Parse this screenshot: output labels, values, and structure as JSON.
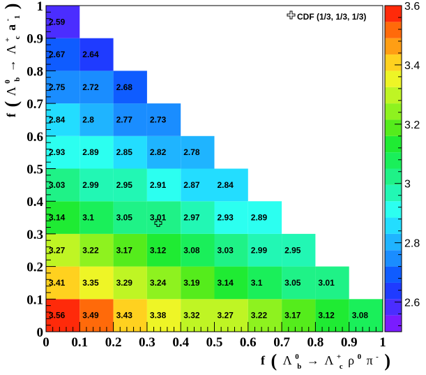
{
  "chart_data": {
    "type": "heatmap",
    "title": "",
    "xlabel": {
      "prefix": "f",
      "lambda": "Λ",
      "lambda_sub": "b",
      "lambda_sup": "0",
      "arrow": "→",
      "lambdac_sub": "c",
      "lambdac_sup": "+",
      "rho": "ρ",
      "rho_sup": "0",
      "pi": "π",
      "pi_sup": "-"
    },
    "ylabel": {
      "prefix": "f",
      "lambda": "Λ",
      "lambda_sub": "b",
      "lambda_sup": "0",
      "arrow": "→",
      "lambdac_sub": "c",
      "lambdac_sup": "+",
      "a": "a",
      "a_sub": "1",
      "a_sup": "-"
    },
    "xlim": [
      0,
      1
    ],
    "ylim": [
      0,
      1
    ],
    "zlim": [
      2.5,
      3.6
    ],
    "x_ticks": [
      "0",
      "0.1",
      "0.2",
      "0.3",
      "0.4",
      "0.5",
      "0.6",
      "0.7",
      "0.8",
      "0.9",
      "1"
    ],
    "y_ticks": [
      "0",
      "0.1",
      "0.2",
      "0.3",
      "0.4",
      "0.5",
      "0.6",
      "0.7",
      "0.8",
      "0.9",
      "1"
    ],
    "palette_ticks": [
      "2.6",
      "2.8",
      "3",
      "3.2",
      "3.4",
      "3.6"
    ],
    "bin_width": 0.1,
    "rows": [
      {
        "y": 0.0,
        "values": [
          "3.56",
          "3.49",
          "3.43",
          "3.38",
          "3.32",
          "3.27",
          "3.22",
          "3.17",
          "3.12",
          "3.08"
        ]
      },
      {
        "y": 0.1,
        "values": [
          "3.41",
          "3.35",
          "3.29",
          "3.24",
          "3.19",
          "3.14",
          "3.1",
          "3.05",
          "3.01"
        ]
      },
      {
        "y": 0.2,
        "values": [
          "3.27",
          "3.22",
          "3.17",
          "3.12",
          "3.08",
          "3.03",
          "2.99",
          "2.95"
        ]
      },
      {
        "y": 0.3,
        "values": [
          "3.14",
          "3.1",
          "3.05",
          "3.01",
          "2.97",
          "2.93",
          "2.89"
        ]
      },
      {
        "y": 0.4,
        "values": [
          "3.03",
          "2.99",
          "2.95",
          "2.91",
          "2.87",
          "2.84"
        ]
      },
      {
        "y": 0.5,
        "values": [
          "2.93",
          "2.89",
          "2.85",
          "2.82",
          "2.78"
        ]
      },
      {
        "y": 0.6,
        "values": [
          "2.84",
          "2.8",
          "2.77",
          "2.73"
        ]
      },
      {
        "y": 0.7,
        "values": [
          "2.75",
          "2.72",
          "2.68"
        ]
      },
      {
        "y": 0.8,
        "values": [
          "2.67",
          "2.64"
        ]
      },
      {
        "y": 0.9,
        "values": [
          "2.59"
        ]
      }
    ],
    "marker": {
      "label": "CDF (1/3, 1/3, 1/3)",
      "x": 0.3333,
      "y": 0.3333,
      "symbol": "open-cross"
    },
    "legend_position": "top-right",
    "grid": false
  }
}
